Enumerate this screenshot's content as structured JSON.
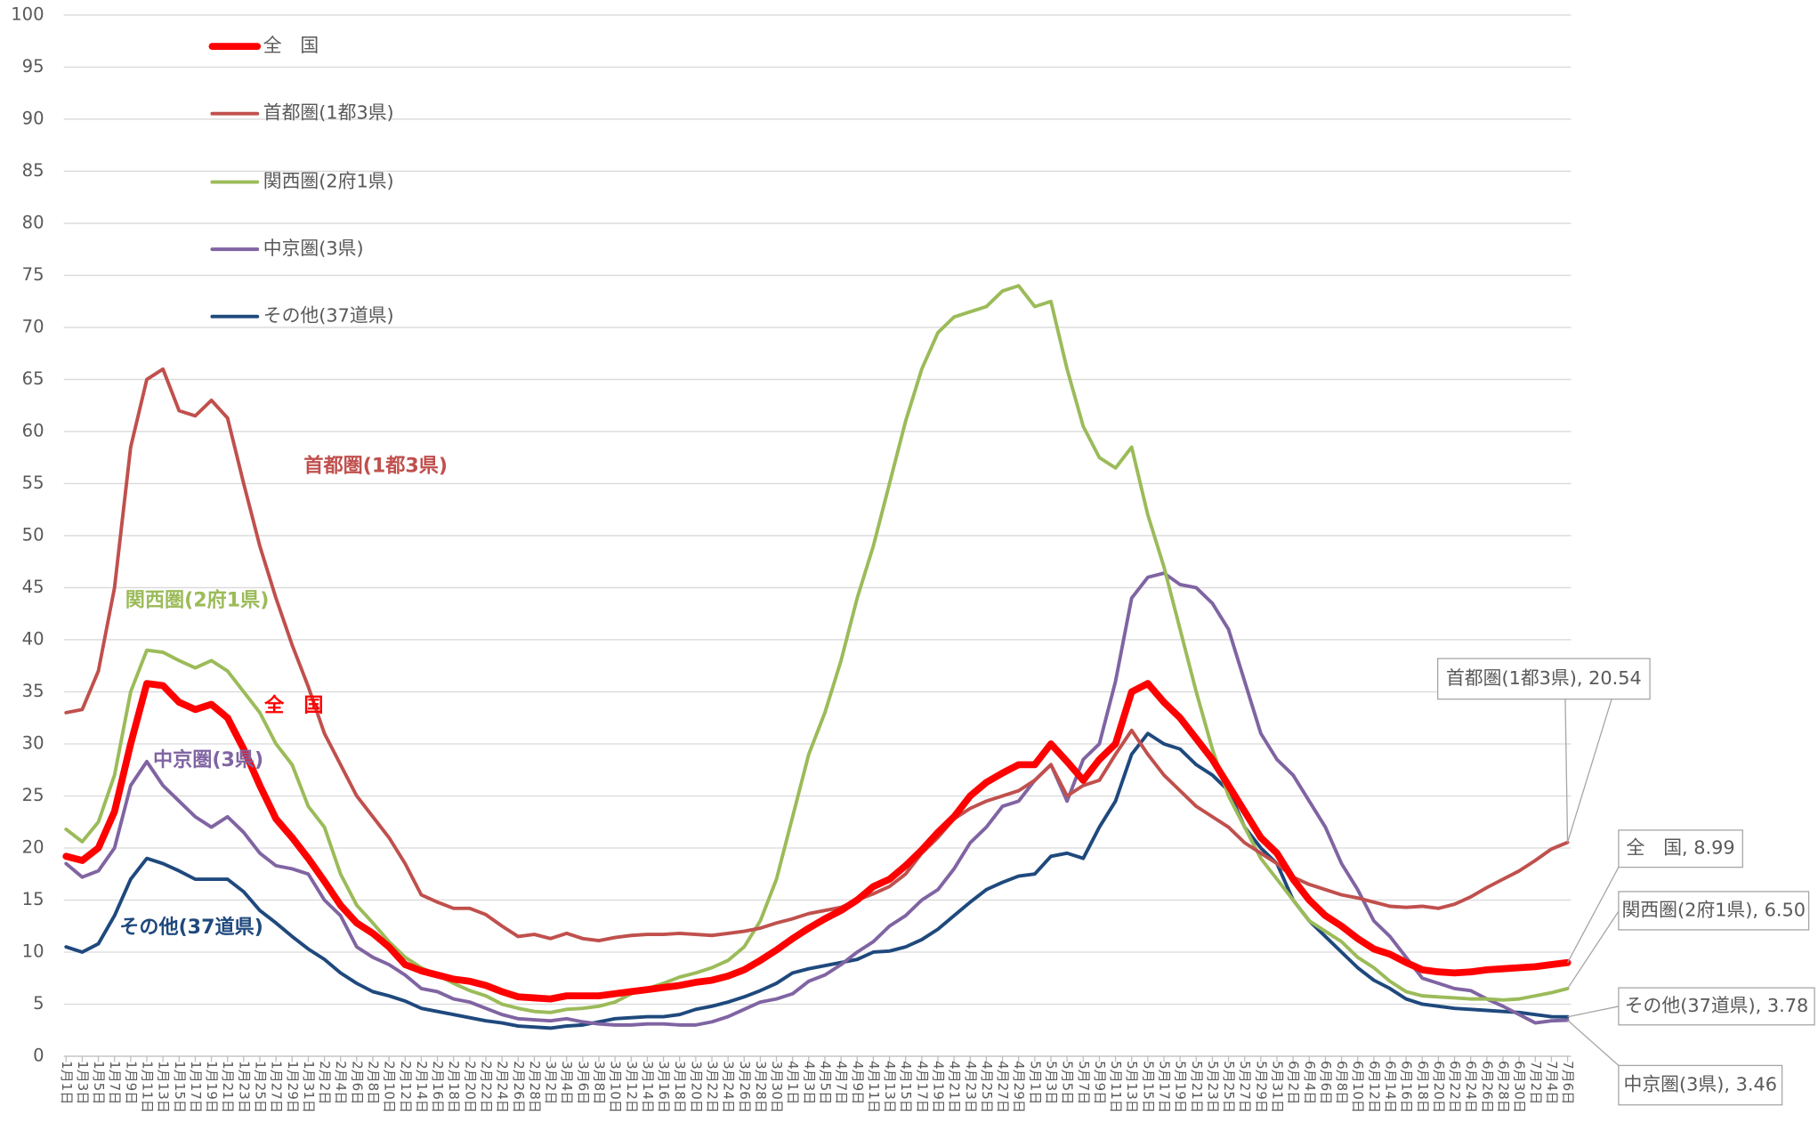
{
  "chart_data": {
    "type": "line",
    "categories": [
      "1月1日",
      "1月3日",
      "1月5日",
      "1月7日",
      "1月9日",
      "1月11日",
      "1月13日",
      "1月15日",
      "1月17日",
      "1月19日",
      "1月21日",
      "1月23日",
      "1月25日",
      "1月27日",
      "1月29日",
      "1月31日",
      "2月2日",
      "2月4日",
      "2月6日",
      "2月8日",
      "2月10日",
      "2月12日",
      "2月14日",
      "2月16日",
      "2月18日",
      "2月20日",
      "2月22日",
      "2月24日",
      "2月26日",
      "2月28日",
      "3月2日",
      "3月4日",
      "3月6日",
      "3月8日",
      "3月10日",
      "3月12日",
      "3月14日",
      "3月16日",
      "3月18日",
      "3月20日",
      "3月22日",
      "3月24日",
      "3月26日",
      "3月28日",
      "3月30日",
      "4月1日",
      "4月3日",
      "4月5日",
      "4月7日",
      "4月9日",
      "4月11日",
      "4月13日",
      "4月15日",
      "4月17日",
      "4月19日",
      "4月21日",
      "4月23日",
      "4月25日",
      "4月27日",
      "4月29日",
      "5月1日",
      "5月3日",
      "5月5日",
      "5月7日",
      "5月9日",
      "5月11日",
      "5月13日",
      "5月15日",
      "5月17日",
      "5月19日",
      "5月21日",
      "5月23日",
      "5月25日",
      "5月27日",
      "5月29日",
      "5月31日",
      "6月2日",
      "6月4日",
      "6月6日",
      "6月8日",
      "6月10日",
      "6月12日",
      "6月14日",
      "6月16日",
      "6月18日",
      "6月20日",
      "6月22日",
      "6月24日",
      "6月26日",
      "6月28日",
      "6月30日",
      "7月2日",
      "7月4日",
      "7月6日"
    ],
    "series": [
      {
        "name": "全　国",
        "color": "#ff0000",
        "values": [
          19.2,
          18.8,
          20,
          23.5,
          30,
          35.8,
          35.6,
          34,
          33.3,
          33.8,
          32.5,
          29.5,
          26,
          22.8,
          21,
          19,
          16.8,
          14.5,
          12.8,
          11.8,
          10.5,
          8.8,
          8.2,
          7.8,
          7.4,
          7.2,
          6.8,
          6.2,
          5.7,
          5.6,
          5.5,
          5.8,
          5.8,
          5.8,
          6,
          6.2,
          6.4,
          6.6,
          6.8,
          7.1,
          7.3,
          7.7,
          8.3,
          9.2,
          10.2,
          11.3,
          12.3,
          13.2,
          14,
          15,
          16.3,
          17,
          18.3,
          19.8,
          21.5,
          23,
          25,
          26.3,
          27.2,
          28,
          28,
          30,
          28.3,
          26.5,
          28.5,
          30,
          35,
          35.8,
          34,
          32.5,
          30.5,
          28.5,
          26,
          23.5,
          21,
          19.5,
          17,
          15,
          13.5,
          12.5,
          11.3,
          10.3,
          9.8,
          9,
          8.3,
          8.1,
          8,
          8.1,
          8.3,
          8.4,
          8.5,
          8.6,
          8.8,
          8.99
        ]
      },
      {
        "name": "首都圏(1都3県)",
        "color": "#c0504d",
        "values": [
          33,
          33.3,
          37,
          45,
          58.5,
          65,
          66,
          62,
          61.5,
          63,
          61.3,
          55,
          49,
          44,
          39.5,
          35.5,
          31,
          28,
          25,
          23,
          21,
          18.5,
          15.5,
          14.8,
          14.2,
          14.2,
          13.6,
          12.5,
          11.5,
          11.7,
          11.3,
          11.8,
          11.3,
          11.1,
          11.4,
          11.6,
          11.7,
          11.7,
          11.8,
          11.7,
          11.6,
          11.8,
          12,
          12.3,
          12.8,
          13.2,
          13.7,
          14,
          14.3,
          15,
          15.6,
          16.3,
          17.5,
          19.5,
          21,
          22.8,
          23.8,
          24.5,
          25,
          25.5,
          26.5,
          28,
          25,
          26,
          26.5,
          29,
          31.3,
          29,
          27,
          25.5,
          24,
          23,
          22,
          20.5,
          19.5,
          18.5,
          17.2,
          16.5,
          16,
          15.5,
          15.2,
          14.8,
          14.4,
          14.3,
          14.4,
          14.2,
          14.6,
          15.3,
          16.2,
          17,
          17.8,
          18.8,
          19.9,
          20.54
        ]
      },
      {
        "name": "関西圏(2府1県)",
        "color": "#9bbb59",
        "values": [
          21.8,
          20.6,
          22.5,
          27,
          35,
          39,
          38.8,
          38,
          37.3,
          38,
          37,
          35,
          33,
          30,
          28,
          24,
          22,
          17.5,
          14.5,
          12.8,
          11,
          9.5,
          8.5,
          7.8,
          7,
          6.3,
          5.8,
          5,
          4.6,
          4.3,
          4.2,
          4.5,
          4.6,
          4.8,
          5.2,
          6,
          6.5,
          7,
          7.6,
          8,
          8.5,
          9.2,
          10.5,
          13,
          17,
          23,
          29,
          33,
          38,
          44,
          49,
          55,
          61,
          66,
          69.5,
          71,
          71.5,
          72,
          73.5,
          74,
          72,
          72.5,
          66,
          60.5,
          57.5,
          56.5,
          58.5,
          52,
          47,
          41,
          35,
          29.5,
          25,
          22,
          19,
          17,
          15,
          13,
          12,
          11,
          9.5,
          8.5,
          7.2,
          6.2,
          5.8,
          5.7,
          5.6,
          5.5,
          5.5,
          5.4,
          5.5,
          5.8,
          6.1,
          6.5
        ]
      },
      {
        "name": "中京圏(3県)",
        "color": "#8064a2",
        "values": [
          18.5,
          17.2,
          17.8,
          20,
          26,
          28.3,
          26,
          24.5,
          23,
          22,
          23,
          21.5,
          19.5,
          18.3,
          18,
          17.5,
          15,
          13.5,
          10.5,
          9.5,
          8.8,
          7.8,
          6.5,
          6.2,
          5.5,
          5.2,
          4.6,
          4,
          3.6,
          3.5,
          3.4,
          3.6,
          3.3,
          3.1,
          3,
          3,
          3.1,
          3.1,
          3,
          3,
          3.3,
          3.8,
          4.5,
          5.2,
          5.5,
          6,
          7.2,
          7.8,
          8.8,
          10,
          11,
          12.5,
          13.5,
          15,
          16,
          18,
          20.5,
          22,
          24,
          24.5,
          26.5,
          28,
          24.5,
          28.5,
          30,
          36,
          44,
          46,
          46.4,
          45.3,
          45,
          43.5,
          41,
          36,
          31,
          28.5,
          27,
          24.5,
          22,
          18.5,
          16,
          13,
          11.5,
          9.5,
          7.5,
          7,
          6.5,
          6.3,
          5.5,
          4.8,
          4,
          3.2,
          3.4,
          3.46
        ]
      },
      {
        "name": "その他(37道県)",
        "color": "#1f497d",
        "values": [
          10.5,
          10,
          10.8,
          13.5,
          17,
          19,
          18.5,
          17.8,
          17,
          17,
          17,
          15.8,
          14,
          12.8,
          11.5,
          10.3,
          9.3,
          8,
          7,
          6.2,
          5.8,
          5.3,
          4.6,
          4.3,
          4,
          3.7,
          3.4,
          3.2,
          2.9,
          2.8,
          2.7,
          2.9,
          3,
          3.3,
          3.6,
          3.7,
          3.8,
          3.8,
          4,
          4.5,
          4.8,
          5.2,
          5.7,
          6.3,
          7,
          8,
          8.4,
          8.7,
          9,
          9.3,
          10,
          10.1,
          10.5,
          11.2,
          12.2,
          13.5,
          14.8,
          16,
          16.7,
          17.3,
          17.5,
          19.2,
          19.5,
          19,
          22,
          24.5,
          29,
          31,
          30,
          29.5,
          28,
          27,
          25.5,
          22,
          20,
          18.5,
          15,
          13,
          11.5,
          10,
          8.5,
          7.3,
          6.5,
          5.5,
          5,
          4.8,
          4.6,
          4.5,
          4.4,
          4.3,
          4.2,
          4,
          3.8,
          3.78
        ]
      }
    ],
    "end_labels": [
      "全　国, 8.99",
      "首都圏(1都3県), 20.54",
      "関西圏(2府1県), 6.50",
      "中京圏(3県), 3.46",
      "その他(37道県), 3.78"
    ],
    "ylim": [
      0,
      100
    ],
    "yticks": [
      0,
      5,
      10,
      15,
      20,
      25,
      30,
      35,
      40,
      45,
      50,
      55,
      60,
      65,
      70,
      75,
      80,
      85,
      90,
      95,
      100
    ],
    "grid": true,
    "legend": "top-left"
  }
}
